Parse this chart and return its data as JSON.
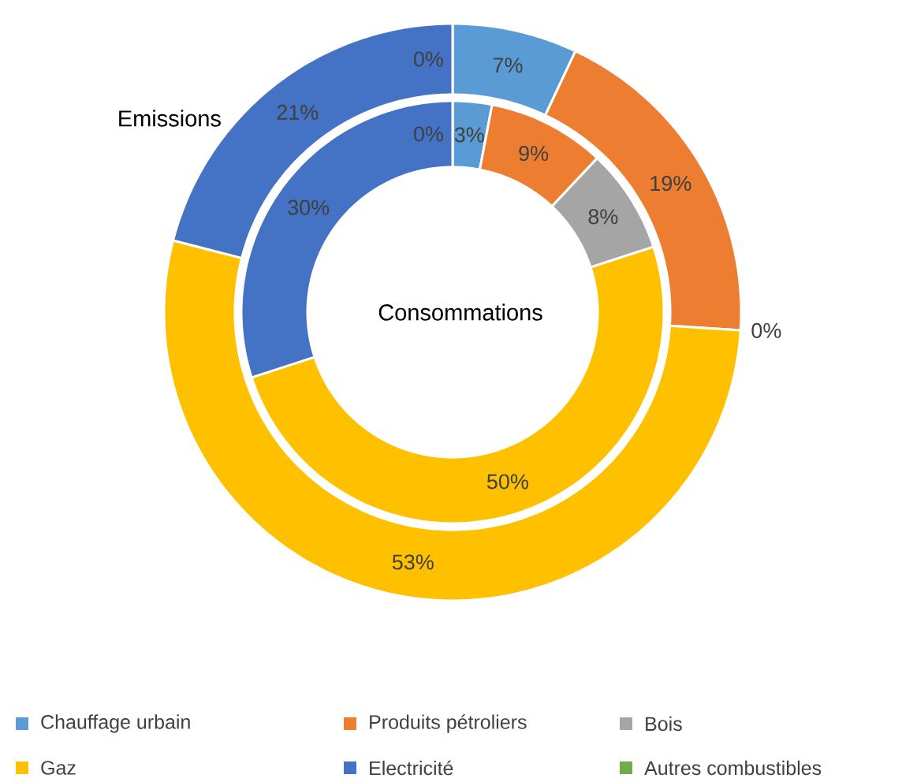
{
  "chart_data": {
    "type": "donut",
    "categories": [
      "Chauffage urbain",
      "Produits pétroliers",
      "Bois",
      "Gaz",
      "Electricité",
      "Autres combustibles"
    ],
    "colors": [
      "#5b9bd5",
      "#ed7d31",
      "#a5a5a5",
      "#ffc000",
      "#4472c4",
      "#70ad47"
    ],
    "series": [
      {
        "name": "Emissions",
        "values": [
          7,
          19,
          0,
          53,
          21,
          0
        ],
        "value_labels": [
          "7%",
          "19%",
          "0%",
          "53%",
          "21%",
          "0%"
        ]
      },
      {
        "name": "Consommations",
        "values": [
          3,
          9,
          8,
          50,
          30,
          0
        ],
        "value_labels": [
          "3%",
          "9%",
          "8%",
          "50%",
          "30%",
          "0%"
        ]
      }
    ],
    "legend": "bottom"
  }
}
